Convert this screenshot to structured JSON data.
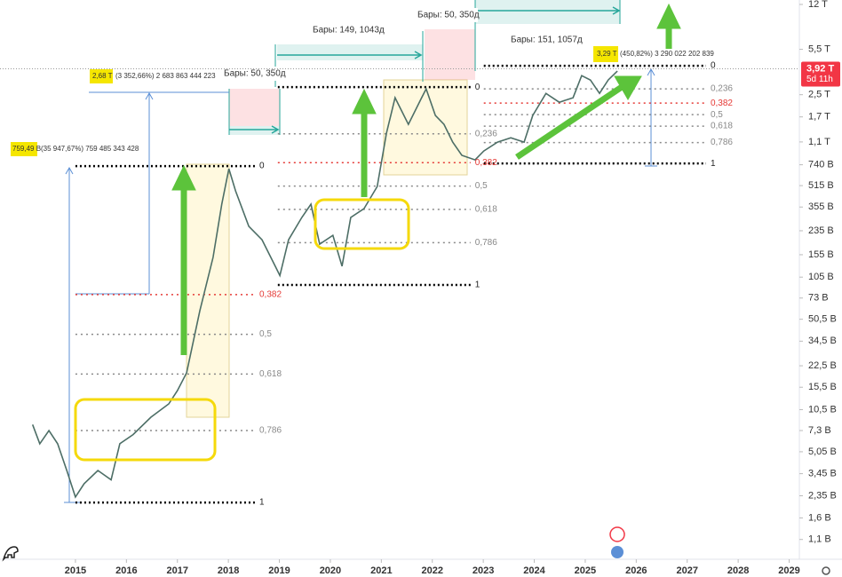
{
  "chart_data": {
    "type": "line",
    "color": "#4d6e66",
    "log_scale": true,
    "x": [
      2014.16,
      2014.3,
      2014.48,
      2014.65,
      2014.83,
      2015.0,
      2015.17,
      2015.44,
      2015.7,
      2015.87,
      2016.13,
      2016.48,
      2016.83,
      2017.0,
      2017.18,
      2017.44,
      2017.7,
      2017.87,
      2018.01,
      2018.14,
      2018.4,
      2018.66,
      2018.92,
      2019.01,
      2019.18,
      2019.44,
      2019.62,
      2019.79,
      2020.05,
      2020.23,
      2020.4,
      2020.66,
      2020.92,
      2021.1,
      2021.27,
      2021.53,
      2021.79,
      2021.88,
      2022.06,
      2022.23,
      2022.4,
      2022.58,
      2022.84,
      2023.01,
      2023.28,
      2023.54,
      2023.8,
      2023.97,
      2024.23,
      2024.49,
      2024.76,
      2024.93,
      2025.1,
      2025.28,
      2025.45,
      2025.63
    ],
    "values": [
      8.1,
      5.8,
      7.3,
      5.8,
      3.65,
      2.3,
      2.9,
      3.65,
      3.1,
      5.8,
      6.8,
      9.2,
      11.6,
      14.6,
      19.9,
      58.5,
      148,
      373,
      690,
      470,
      254,
      201,
      127,
      108,
      201,
      296,
      373,
      186,
      217,
      127,
      296,
      345,
      507,
      1280,
      2372,
      1493,
      2372,
      2767,
      1742,
      1493,
      1097,
      871,
      806,
      940,
      1097,
      1183,
      1097,
      1742,
      2559,
      2193,
      2372,
      3484,
      3229,
      2559,
      3229,
      3768
    ],
    "xlim": [
      2013.52,
      2029.2
    ],
    "xticks": [
      2015,
      2016,
      2017,
      2018,
      2019,
      2020,
      2021,
      2022,
      2023,
      2024,
      2025,
      2026,
      2027,
      2028,
      2029
    ],
    "ylim": [
      0.78,
      12960
    ],
    "yticks": [
      {
        "value": 12000,
        "label": "12 T"
      },
      {
        "value": 5500,
        "label": "5,5 T"
      },
      {
        "value": 2500,
        "label": "2,5 T"
      },
      {
        "value": 1700,
        "label": "1,7 T"
      },
      {
        "value": 1100,
        "label": "1,1 T"
      },
      {
        "value": 740,
        "label": "740 B"
      },
      {
        "value": 515,
        "label": "515 B"
      },
      {
        "value": 355,
        "label": "355 B"
      },
      {
        "value": 235,
        "label": "235 B"
      },
      {
        "value": 155,
        "label": "155 B"
      },
      {
        "value": 105,
        "label": "105 B"
      },
      {
        "value": 73,
        "label": "73 B"
      },
      {
        "value": 50.5,
        "label": "50,5 B"
      },
      {
        "value": 34.5,
        "label": "34,5 B"
      },
      {
        "value": 22.5,
        "label": "22,5 B"
      },
      {
        "value": 15.5,
        "label": "15,5 B"
      },
      {
        "value": 10.5,
        "label": "10,5 B"
      },
      {
        "value": 7.3,
        "label": "7,3 B"
      },
      {
        "value": 5.05,
        "label": "5,05 B"
      },
      {
        "value": 3.45,
        "label": "3,45 B"
      },
      {
        "value": 2.35,
        "label": "2,35 B"
      },
      {
        "value": 1.6,
        "label": "1,6 B"
      },
      {
        "value": 1.1,
        "label": "1,1 B"
      }
    ],
    "last_price": {
      "value": 3920,
      "label": "3,92 T",
      "countdown": "5d 11h",
      "color": "#f23645"
    },
    "fibs": [
      {
        "high": 723,
        "low": 2.09,
        "x_start": 2015.0,
        "x_end": 2018.52,
        "levels": [
          {
            "value": 0,
            "label": "0"
          },
          {
            "value": 0.382,
            "label": "0,382"
          },
          {
            "value": 0.5,
            "label": "0,5"
          },
          {
            "value": 0.618,
            "label": "0,618"
          },
          {
            "value": 0.786,
            "label": "0,786"
          },
          {
            "value": 1,
            "label": "1"
          }
        ],
        "level_colors": [
          "#000000",
          "#e53935",
          "#888888",
          "#888888",
          "#888888",
          "#000000"
        ]
      },
      {
        "high": 2852,
        "low": 91.6,
        "x_start": 2018.97,
        "x_end": 2022.75,
        "levels": [
          {
            "value": 0,
            "label": "0"
          },
          {
            "value": 0.236,
            "label": "0,236"
          },
          {
            "value": 0.382,
            "label": "0,382"
          },
          {
            "value": 0.5,
            "label": "0,5"
          },
          {
            "value": 0.618,
            "label": "0,618"
          },
          {
            "value": 0.786,
            "label": "0,786"
          },
          {
            "value": 1,
            "label": "1"
          }
        ],
        "level_colors": [
          "#000000",
          "#888888",
          "#e53935",
          "#888888",
          "#888888",
          "#888888",
          "#000000"
        ]
      },
      {
        "high": 4132,
        "low": 757,
        "x_start": 2023.01,
        "x_end": 2027.37,
        "levels": [
          {
            "value": 0,
            "label": "0"
          },
          {
            "value": 0.236,
            "label": "0,236"
          },
          {
            "value": 0.382,
            "label": "0,382"
          },
          {
            "value": 0.5,
            "label": "0,5"
          },
          {
            "value": 0.618,
            "label": "0,618"
          },
          {
            "value": 0.786,
            "label": "0,786"
          },
          {
            "value": 1,
            "label": "1"
          }
        ],
        "level_colors": [
          "#000000",
          "#888888",
          "#e53935",
          "#888888",
          "#888888",
          "#888888",
          "#000000"
        ]
      }
    ],
    "measures": [
      {
        "highlight": "759,49 B",
        "detail": "(35 947,67%) 759 485 343 428"
      },
      {
        "highlight": "2,68 T",
        "detail": "(3 352,66%) 2 683 863 444 223"
      },
      {
        "highlight": "3,29 T",
        "detail": "(450,82%) 3 290 022 202 839"
      }
    ],
    "bar_ranges": [
      "Бары: 50, 350д",
      "Бары: 149, 1043д",
      "Бары: 50, 350д",
      "Бары: 151, 1057д"
    ]
  }
}
